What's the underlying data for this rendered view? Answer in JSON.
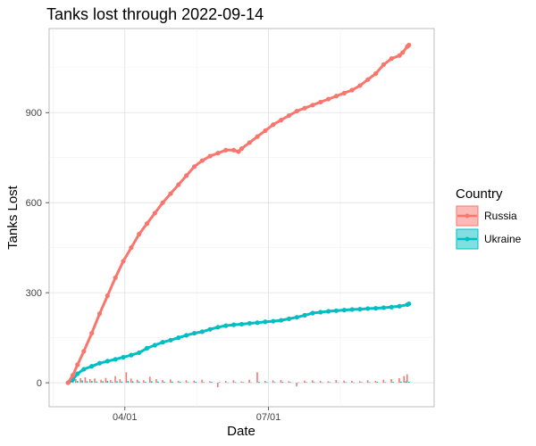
{
  "chart_data": {
    "type": "line",
    "title": "Tanks lost through 2022-09-14",
    "xlabel": "Date",
    "ylabel": "Tanks Lost",
    "x_range_days": [
      -12,
      232
    ],
    "ylim": [
      -80,
      1180
    ],
    "y_ticks": [
      0,
      300,
      600,
      900
    ],
    "x_ticks": [
      {
        "label": "04/01",
        "day": 36
      },
      {
        "label": "07/01",
        "day": 127
      }
    ],
    "legend": {
      "title": "Country",
      "position": "right"
    },
    "series": [
      {
        "name": "Russia",
        "color": "#F8766D",
        "day": [
          0,
          3,
          6,
          10,
          15,
          20,
          25,
          30,
          35,
          40,
          45,
          50,
          55,
          60,
          65,
          70,
          75,
          80,
          85,
          90,
          95,
          100,
          105,
          108,
          110,
          115,
          120,
          125,
          130,
          135,
          140,
          145,
          150,
          155,
          160,
          165,
          170,
          175,
          180,
          185,
          190,
          195,
          200,
          205,
          210,
          212,
          215,
          216
        ],
        "values": [
          0,
          25,
          60,
          105,
          165,
          230,
          290,
          350,
          405,
          450,
          495,
          530,
          565,
          600,
          630,
          660,
          690,
          720,
          740,
          755,
          765,
          775,
          775,
          770,
          780,
          800,
          820,
          840,
          860,
          875,
          890,
          905,
          915,
          925,
          935,
          945,
          955,
          965,
          975,
          990,
          1010,
          1030,
          1060,
          1080,
          1090,
          1100,
          1120,
          1125
        ]
      },
      {
        "name": "Ukraine",
        "color": "#00BFC4",
        "day": [
          0,
          3,
          6,
          10,
          15,
          20,
          25,
          30,
          35,
          40,
          45,
          50,
          55,
          60,
          65,
          70,
          75,
          80,
          85,
          90,
          95,
          100,
          105,
          110,
          115,
          120,
          125,
          130,
          135,
          140,
          145,
          150,
          155,
          160,
          165,
          170,
          175,
          180,
          185,
          190,
          195,
          200,
          205,
          210,
          215,
          216
        ],
        "values": [
          0,
          10,
          30,
          45,
          55,
          65,
          72,
          78,
          85,
          92,
          100,
          115,
          125,
          135,
          142,
          150,
          158,
          165,
          170,
          178,
          185,
          190,
          193,
          195,
          198,
          200,
          203,
          205,
          208,
          213,
          218,
          225,
          232,
          235,
          238,
          240,
          242,
          244,
          245,
          247,
          248,
          250,
          252,
          255,
          260,
          263
        ]
      }
    ],
    "daily_bars": {
      "series": [
        "Russia",
        "Ukraine"
      ],
      "day": [
        2,
        5,
        8,
        11,
        14,
        17,
        21,
        24,
        27,
        30,
        33,
        37,
        40,
        44,
        48,
        52,
        56,
        60,
        65,
        70,
        75,
        80,
        85,
        90,
        95,
        100,
        105,
        110,
        115,
        120,
        125,
        130,
        135,
        140,
        145,
        150,
        155,
        160,
        165,
        170,
        175,
        180,
        185,
        190,
        195,
        200,
        205,
        210,
        213,
        215
      ],
      "russia": [
        8,
        12,
        15,
        18,
        12,
        14,
        10,
        16,
        9,
        22,
        12,
        35,
        14,
        10,
        8,
        20,
        12,
        9,
        11,
        6,
        8,
        7,
        10,
        5,
        -15,
        6,
        8,
        4,
        10,
        35,
        6,
        8,
        9,
        5,
        -12,
        7,
        8,
        6,
        5,
        9,
        7,
        6,
        5,
        8,
        6,
        10,
        12,
        15,
        22,
        28
      ],
      "ukraine": [
        4,
        6,
        8,
        5,
        6,
        4,
        5,
        6,
        3,
        5,
        4,
        6,
        5,
        4,
        3,
        5,
        4,
        3,
        4,
        3,
        2,
        3,
        2,
        3,
        2,
        1,
        2,
        2,
        1,
        3,
        2,
        2,
        3,
        2,
        1,
        2,
        2,
        1,
        2,
        1,
        2,
        1,
        2,
        2,
        3,
        2,
        3,
        4,
        5,
        3
      ]
    }
  }
}
